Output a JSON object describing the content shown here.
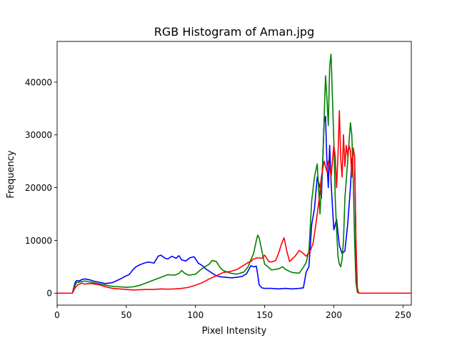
{
  "chart_data": {
    "type": "line",
    "title": "RGB Histogram of Aman.jpg",
    "xlabel": "Pixel Intensity",
    "ylabel": "Frequency",
    "xlim": [
      0,
      256
    ],
    "ylim": [
      -2270,
      47700
    ],
    "x_ticks": [
      0,
      50,
      100,
      150,
      200,
      250
    ],
    "x_tick_labels": [
      "0",
      "50",
      "100",
      "150",
      "200",
      "250"
    ],
    "y_ticks": [
      0,
      10000,
      20000,
      30000,
      40000
    ],
    "y_tick_labels": [
      "0",
      "10000",
      "20000",
      "30000",
      "40000"
    ],
    "grid": false,
    "legend": "none",
    "series": [
      {
        "color": "#0000ff",
        "x": [
          0,
          11,
          13,
          14,
          16,
          18,
          20,
          22,
          24,
          26,
          28,
          30,
          35,
          40,
          45,
          50,
          52,
          55,
          57,
          60,
          63,
          66,
          70,
          73,
          75,
          78,
          80,
          83,
          86,
          88,
          90,
          93,
          96,
          99,
          102,
          105,
          108,
          112,
          115,
          118,
          122,
          126,
          130,
          134,
          137,
          140,
          142,
          144,
          145,
          146,
          148,
          150,
          155,
          160,
          165,
          170,
          175,
          178,
          180,
          182,
          184,
          186,
          188,
          190,
          191,
          192,
          193,
          194,
          195,
          196,
          197,
          198,
          200,
          202,
          204,
          206,
          208,
          210,
          212,
          213,
          214,
          215,
          216,
          217,
          218,
          256
        ],
        "y": [
          0,
          0,
          2000,
          2400,
          2300,
          2600,
          2700,
          2600,
          2500,
          2300,
          2200,
          2100,
          1800,
          2000,
          2600,
          3300,
          3500,
          4500,
          5000,
          5400,
          5700,
          5900,
          5700,
          7000,
          7200,
          6600,
          6500,
          7000,
          6600,
          7100,
          6300,
          6100,
          6700,
          6900,
          5700,
          5200,
          4500,
          3800,
          3300,
          3100,
          3000,
          2900,
          3000,
          3200,
          3700,
          5200,
          5000,
          5100,
          3500,
          1600,
          1000,
          900,
          900,
          800,
          900,
          800,
          900,
          1000,
          4000,
          5000,
          13000,
          16000,
          22000,
          20000,
          18000,
          25000,
          32500,
          33500,
          25000,
          20000,
          28000,
          21000,
          12000,
          14000,
          9000,
          7500,
          8000,
          13000,
          20000,
          25000,
          27000,
          26000,
          8000,
          500,
          0,
          0
        ]
      },
      {
        "color": "#008000",
        "x": [
          0,
          11,
          13,
          14,
          16,
          18,
          20,
          22,
          24,
          26,
          28,
          30,
          35,
          40,
          45,
          50,
          55,
          60,
          65,
          70,
          75,
          80,
          85,
          88,
          90,
          92,
          95,
          100,
          105,
          110,
          112,
          115,
          118,
          120,
          125,
          130,
          135,
          138,
          140,
          142,
          144,
          145,
          146,
          148,
          150,
          155,
          160,
          163,
          165,
          170,
          175,
          178,
          180,
          182,
          184,
          186,
          188,
          190,
          192,
          194,
          195,
          196,
          197,
          198,
          199,
          200,
          201,
          202,
          203,
          204,
          205,
          206,
          207,
          208,
          210,
          212,
          213,
          214,
          215,
          216,
          217,
          218,
          256
        ],
        "y": [
          0,
          0,
          1500,
          2000,
          2100,
          2200,
          2300,
          2200,
          2100,
          2000,
          1900,
          1800,
          1500,
          1300,
          1200,
          1100,
          1200,
          1500,
          2000,
          2500,
          3000,
          3500,
          3400,
          3700,
          4300,
          3800,
          3400,
          3600,
          4700,
          5500,
          6200,
          6000,
          4800,
          4300,
          3800,
          3600,
          4000,
          5000,
          6300,
          7500,
          10000,
          11000,
          10500,
          8000,
          5500,
          4400,
          4600,
          5000,
          4500,
          3900,
          3800,
          4900,
          5800,
          8000,
          17500,
          22000,
          24500,
          15000,
          25000,
          41200,
          37000,
          31800,
          43000,
          45300,
          37000,
          29000,
          18000,
          12000,
          7000,
          5500,
          5000,
          6500,
          10000,
          18000,
          25000,
          32300,
          30000,
          22000,
          10000,
          2000,
          200,
          0,
          0
        ]
      },
      {
        "color": "#ff0000",
        "x": [
          0,
          11,
          13,
          15,
          18,
          20,
          22,
          25,
          30,
          35,
          40,
          45,
          50,
          55,
          60,
          65,
          70,
          75,
          80,
          85,
          90,
          95,
          100,
          105,
          110,
          115,
          120,
          125,
          130,
          135,
          138,
          140,
          142,
          145,
          148,
          150,
          153,
          155,
          158,
          160,
          162,
          164,
          166,
          168,
          170,
          172,
          175,
          178,
          180,
          183,
          185,
          187,
          189,
          191,
          193,
          195,
          196,
          197,
          198,
          199,
          200,
          201,
          202,
          203,
          204,
          205,
          206,
          207,
          208,
          209,
          210,
          211,
          212,
          213,
          214,
          215,
          216,
          217,
          218,
          256
        ],
        "y": [
          0,
          0,
          1000,
          1600,
          1900,
          1700,
          1800,
          1800,
          1600,
          1200,
          900,
          800,
          700,
          600,
          650,
          700,
          700,
          800,
          750,
          800,
          900,
          1100,
          1500,
          2000,
          2700,
          3300,
          3900,
          4100,
          4500,
          5300,
          5800,
          6000,
          6500,
          6700,
          6600,
          7200,
          6000,
          5900,
          6200,
          7500,
          9200,
          10500,
          8000,
          6000,
          6500,
          7000,
          8100,
          7500,
          7000,
          8000,
          9500,
          13000,
          17000,
          22000,
          25000,
          23000,
          25000,
          24000,
          22000,
          25000,
          28000,
          26000,
          20000,
          26000,
          34600,
          25500,
          22000,
          30000,
          24000,
          28000,
          26000,
          28000,
          27000,
          22000,
          27500,
          26000,
          10000,
          1000,
          0,
          0
        ]
      }
    ]
  }
}
